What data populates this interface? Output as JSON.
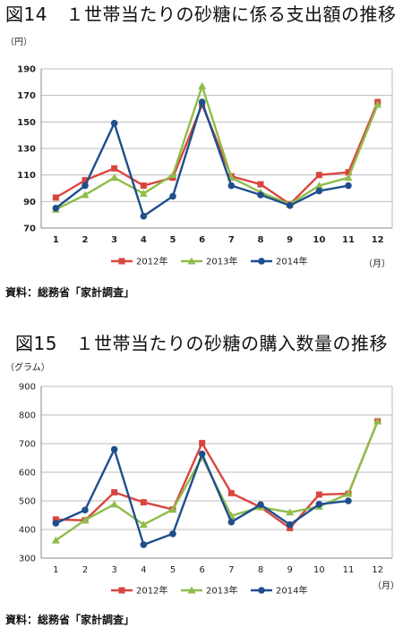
{
  "figures": [
    {
      "title": "図14　１世帯当たりの砂糖に係る支出額の推移",
      "source": "資料：総務省「家計調査」",
      "chart_data": {
        "type": "line",
        "title": "図14　１世帯当たりの砂糖に係る支出額の推移",
        "ylabel": "（円）",
        "xlabel": "（月）",
        "categories": [
          "1",
          "2",
          "3",
          "4",
          "5",
          "6",
          "7",
          "8",
          "9",
          "10",
          "11",
          "12"
        ],
        "ylim": [
          70,
          190
        ],
        "yticks": [
          70,
          90,
          110,
          130,
          150,
          170,
          190
        ],
        "grid": true,
        "legend": "bottom",
        "series": [
          {
            "name": "2012年",
            "color": "#d9463f",
            "marker": "square",
            "values": [
              93,
              106,
              115,
              102,
              108,
              163,
              109,
              103,
              88,
              110,
              112,
              165
            ]
          },
          {
            "name": "2013年",
            "color": "#8ebd4a",
            "marker": "triangle",
            "values": [
              84,
              95,
              108,
              96,
              110,
              177,
              108,
              97,
              88,
              102,
              108,
              163
            ]
          },
          {
            "name": "2014年",
            "color": "#1f4e8c",
            "marker": "circle",
            "values": [
              85,
              102,
              149,
              79,
              94,
              165,
              102,
              95,
              87,
              98,
              102,
              null
            ]
          }
        ]
      }
    },
    {
      "title": "図15　１世帯当たりの砂糖の購入数量の推移",
      "source": "資料：総務省「家計調査」",
      "chart_data": {
        "type": "line",
        "title": "図15　１世帯当たりの砂糖の購入数量の推移",
        "ylabel": "（グラム）",
        "xlabel": "（月）",
        "categories": [
          "1",
          "2",
          "3",
          "4",
          "5",
          "6",
          "7",
          "8",
          "9",
          "10",
          "11",
          "12"
        ],
        "ylim": [
          300,
          900
        ],
        "yticks": [
          300,
          400,
          500,
          600,
          700,
          800,
          900
        ],
        "grid": true,
        "legend": "bottom",
        "series": [
          {
            "name": "2012年",
            "color": "#d9463f",
            "marker": "square",
            "values": [
              435,
              432,
              530,
              495,
              470,
              702,
              527,
              478,
              405,
              522,
              525,
              778
            ]
          },
          {
            "name": "2013年",
            "color": "#8ebd4a",
            "marker": "triangle",
            "values": [
              362,
              433,
              488,
              417,
              470,
              652,
              448,
              478,
              460,
              480,
              525,
              778
            ]
          },
          {
            "name": "2014年",
            "color": "#1f4e8c",
            "marker": "circle",
            "values": [
              422,
              468,
              680,
              347,
              385,
              664,
              426,
              487,
              417,
              488,
              500,
              null
            ]
          }
        ]
      }
    }
  ]
}
